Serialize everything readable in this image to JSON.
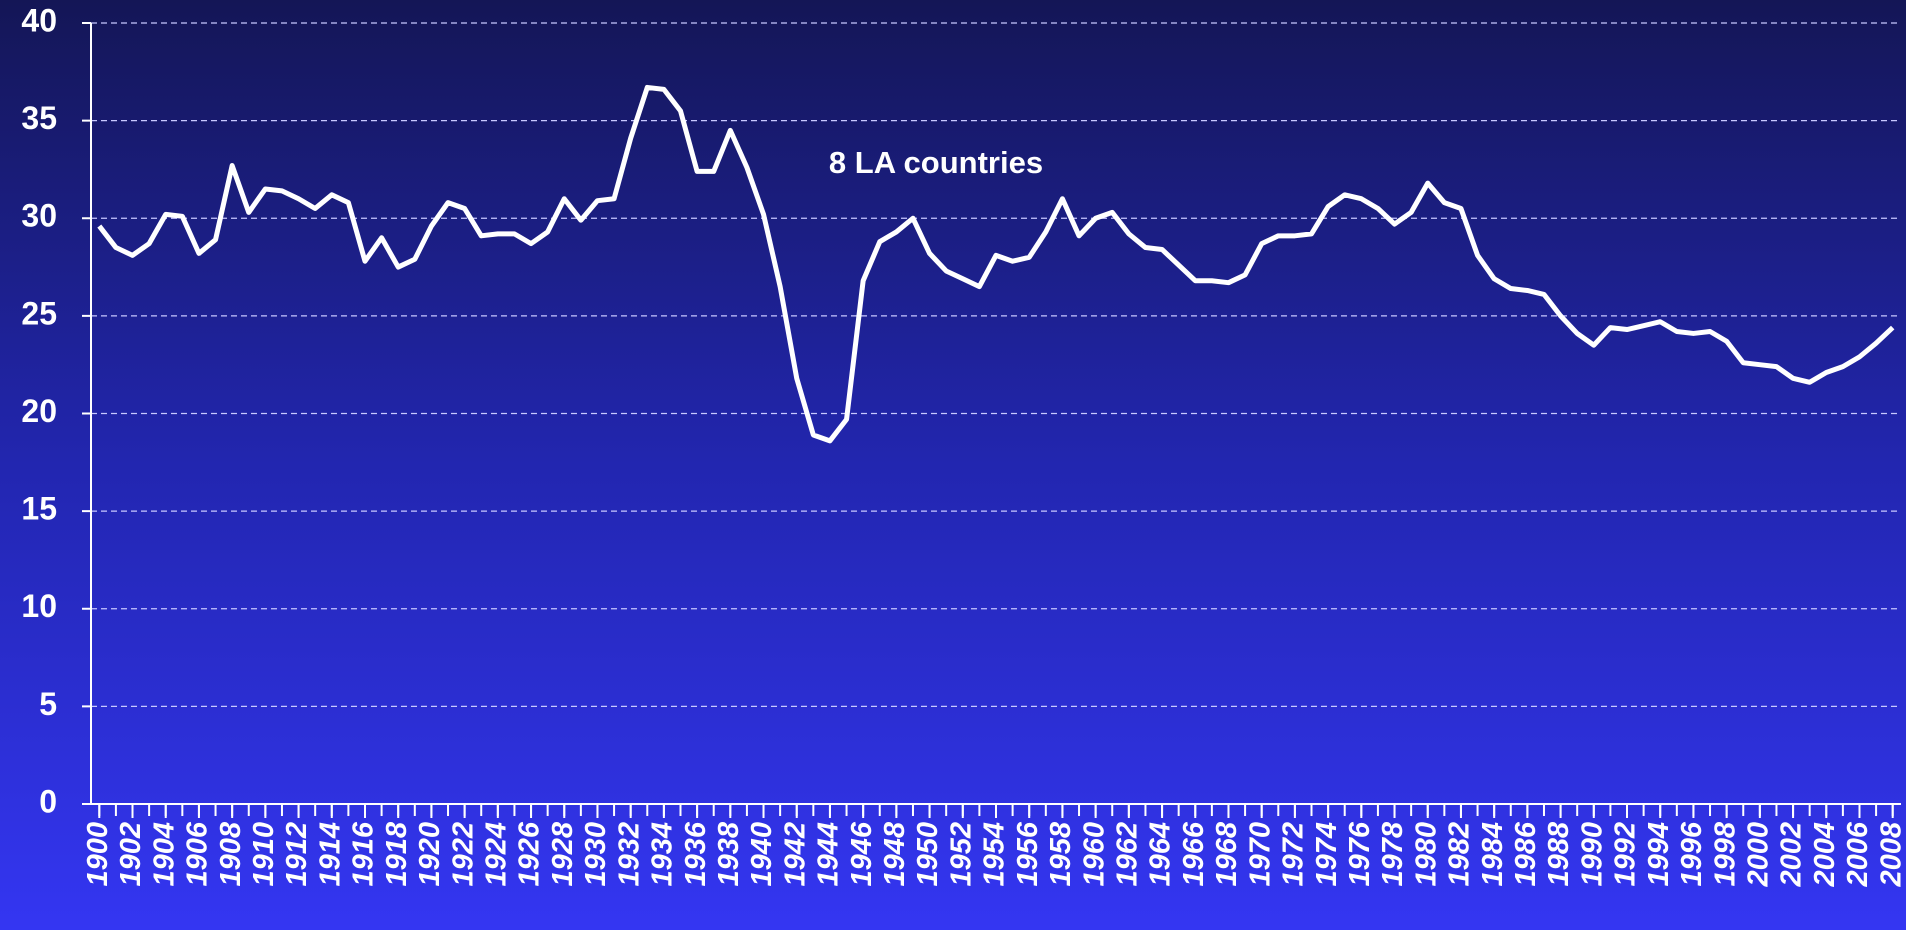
{
  "chart_data": {
    "type": "line",
    "annotation": "8 LA countries",
    "x": [
      1900,
      1901,
      1902,
      1903,
      1904,
      1905,
      1906,
      1907,
      1908,
      1909,
      1910,
      1911,
      1912,
      1913,
      1914,
      1915,
      1916,
      1917,
      1918,
      1919,
      1920,
      1921,
      1922,
      1923,
      1924,
      1925,
      1926,
      1927,
      1928,
      1929,
      1930,
      1931,
      1932,
      1933,
      1934,
      1935,
      1936,
      1937,
      1938,
      1939,
      1940,
      1941,
      1942,
      1943,
      1944,
      1945,
      1946,
      1947,
      1948,
      1949,
      1950,
      1951,
      1952,
      1953,
      1954,
      1955,
      1956,
      1957,
      1958,
      1959,
      1960,
      1961,
      1962,
      1963,
      1964,
      1965,
      1966,
      1967,
      1968,
      1969,
      1970,
      1971,
      1972,
      1973,
      1974,
      1975,
      1976,
      1977,
      1978,
      1979,
      1980,
      1981,
      1982,
      1983,
      1984,
      1985,
      1986,
      1987,
      1988,
      1989,
      1990,
      1991,
      1992,
      1993,
      1994,
      1995,
      1996,
      1997,
      1998,
      1999,
      2000,
      2001,
      2002,
      2003,
      2004,
      2005,
      2006,
      2007,
      2008
    ],
    "series": [
      {
        "color": "#ffffff",
        "values": [
          29.6,
          28.5,
          28.1,
          28.7,
          30.2,
          30.1,
          28.2,
          28.9,
          32.7,
          30.3,
          31.5,
          31.4,
          31.0,
          30.5,
          31.2,
          30.8,
          27.8,
          29.0,
          27.5,
          27.9,
          29.6,
          30.8,
          30.5,
          29.1,
          29.2,
          29.2,
          28.7,
          29.3,
          31.0,
          29.9,
          30.9,
          31.0,
          34.1,
          36.7,
          36.6,
          35.5,
          32.4,
          32.4,
          34.5,
          32.6,
          30.2,
          26.5,
          21.8,
          18.9,
          18.6,
          19.7,
          26.8,
          28.8,
          29.3,
          30.0,
          28.2,
          27.3,
          26.9,
          26.5,
          28.1,
          27.8,
          28.0,
          29.3,
          31.0,
          29.1,
          30.0,
          30.3,
          29.2,
          28.5,
          28.4,
          27.6,
          26.8,
          26.8,
          26.7,
          27.1,
          28.7,
          29.1,
          29.1,
          29.2,
          30.6,
          31.2,
          31.0,
          30.5,
          29.7,
          30.3,
          31.8,
          30.8,
          30.5,
          28.1,
          26.9,
          26.4,
          26.3,
          26.1,
          25.0,
          24.1,
          23.5,
          24.4,
          24.3,
          24.5,
          24.7,
          24.2,
          24.1,
          24.2,
          23.7,
          22.6,
          22.5,
          22.4,
          21.8,
          21.6,
          22.1,
          22.4,
          22.9,
          23.6,
          24.4
        ]
      }
    ],
    "xlim": [
      1899.5,
      2008.5
    ],
    "xticks": [
      1900,
      1902,
      1904,
      1906,
      1908,
      1910,
      1912,
      1914,
      1916,
      1918,
      1920,
      1922,
      1924,
      1926,
      1928,
      1930,
      1932,
      1934,
      1936,
      1938,
      1940,
      1942,
      1944,
      1946,
      1948,
      1950,
      1952,
      1954,
      1956,
      1958,
      1960,
      1962,
      1964,
      1966,
      1968,
      1970,
      1972,
      1974,
      1976,
      1978,
      1980,
      1982,
      1984,
      1986,
      1988,
      1990,
      1992,
      1994,
      1996,
      1998,
      2000,
      2002,
      2004,
      2006,
      2008
    ],
    "ylim": [
      0,
      40
    ],
    "yticks": [
      0,
      5,
      10,
      15,
      20,
      25,
      30,
      35,
      40
    ],
    "grid": true
  }
}
